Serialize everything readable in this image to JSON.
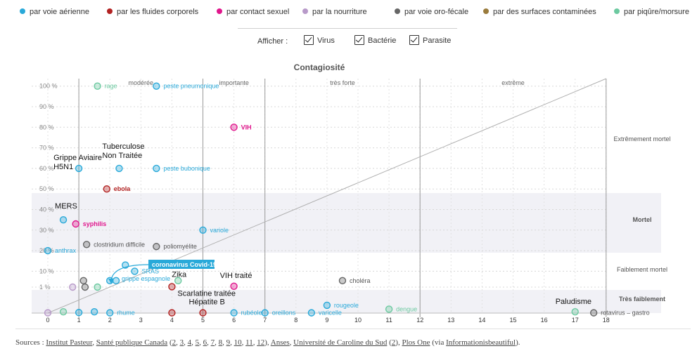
{
  "legend": [
    {
      "label": "par voie aérienne",
      "color": "#29a9d9"
    },
    {
      "label": "par les fluides corporels",
      "color": "#b22222"
    },
    {
      "label": "par contact sexuel",
      "color": "#e0168c"
    },
    {
      "label": "par la nourriture",
      "color": "#b89ac9"
    },
    {
      "label": "par voie oro-fécale",
      "color": "#666666"
    },
    {
      "label": "par des surfaces contaminées",
      "color": "#9a7b3c"
    },
    {
      "label": "par piqûre/morsure",
      "color": "#6cc9a0"
    }
  ],
  "filters": {
    "label": "Afficher :",
    "options": [
      {
        "label": "Virus",
        "checked": true
      },
      {
        "label": "Bactérie",
        "checked": true
      },
      {
        "label": "Parasite",
        "checked": true
      }
    ]
  },
  "sources": {
    "prefix": "Sources : ",
    "institut": "Institut Pasteur",
    "canada": "Santé publique Canada",
    "canada_refs": [
      "2",
      "3",
      "4",
      "5",
      "6",
      "7",
      "8",
      "9",
      "10",
      "11",
      "12"
    ],
    "anses": "Anses",
    "carolina": "Université de Caroline du Sud",
    "carolina_ref": "2",
    "plos": "Plos One",
    "via_prefix": "via ",
    "via": "Informationisbeautiful"
  },
  "chart_data": {
    "type": "scatter",
    "title": "Contagiosité",
    "xlabel": "",
    "ylabel": "",
    "x_ticks": [
      "0",
      "1",
      "2",
      "3",
      "4",
      "5",
      "6",
      "7",
      "8",
      "9",
      "10",
      "11",
      "12",
      "13",
      "14",
      "15",
      "16",
      "17",
      "18"
    ],
    "xlim": [
      0,
      18
    ],
    "y_ticks": [
      "1 %",
      "10 %",
      "20 %",
      "30 %",
      "40 %",
      "50 %",
      "60 %",
      "70 %",
      "80 %",
      "90 %",
      "100 %"
    ],
    "contagion_bands": [
      "modérée",
      "importante",
      "très forte",
      "extrême"
    ],
    "mortality_bands": [
      "Très faiblement",
      "Faiblement mortel",
      "Mortel",
      "Extrêmement mortel"
    ],
    "points": [
      {
        "name": "rage",
        "x": 1.6,
        "y": 100,
        "color": "#6cc9a0"
      },
      {
        "name": "peste pneumonique",
        "x": 3.5,
        "y": 100,
        "color": "#29a9d9"
      },
      {
        "name": "VIH",
        "x": 6,
        "y": 80,
        "color": "#e0168c"
      },
      {
        "name": "Grippe Aviaire H5N1",
        "x": 1,
        "y": 60,
        "color": "#29a9d9"
      },
      {
        "name": "Tuberculose Non Traitée",
        "x": 2.3,
        "y": 60,
        "color": "#29a9d9"
      },
      {
        "name": "peste bubonique",
        "x": 3.5,
        "y": 60,
        "color": "#29a9d9"
      },
      {
        "name": "ebola",
        "x": 1.9,
        "y": 50,
        "color": "#b22222"
      },
      {
        "name": "MERS",
        "x": 0.5,
        "y": 35,
        "color": "#29a9d9"
      },
      {
        "name": "syphilis",
        "x": 0.9,
        "y": 33,
        "color": "#e0168c"
      },
      {
        "name": "variole",
        "x": 5,
        "y": 30,
        "color": "#29a9d9"
      },
      {
        "name": "clostridium difficile",
        "x": 1.25,
        "y": 23,
        "color": "#666666"
      },
      {
        "name": "poliomyélite",
        "x": 3.5,
        "y": 22,
        "color": "#666666"
      },
      {
        "name": "anthrax",
        "x": 0,
        "y": 20,
        "color": "#29a9d9"
      },
      {
        "name": "coronavirus Covid-19",
        "x": 2.5,
        "y": 13,
        "color": "#29a9d9"
      },
      {
        "name": "SRAS",
        "x": 2.8,
        "y": 10,
        "color": "#29a9d9"
      },
      {
        "name": "grippe espagnole",
        "x": 2.2,
        "y": 2.5,
        "color": "#29a9d9"
      },
      {
        "name": "Zika",
        "x": 4,
        "y": 1.1,
        "color": "#b22222"
      },
      {
        "name": "VIH traité",
        "x": 6,
        "y": 1.2,
        "color": "#e0168c"
      },
      {
        "name": "choléra",
        "x": 9.5,
        "y": 2.5,
        "color": "#666666"
      },
      {
        "name": "rougeole",
        "x": 9,
        "y": 0.3,
        "color": "#29a9d9"
      },
      {
        "name": "dengue",
        "x": 11,
        "y": 0.15,
        "color": "#6cc9a0"
      },
      {
        "name": "Scarlatine traitée",
        "x": 4,
        "y": 0.01,
        "color": "#b22222"
      },
      {
        "name": "Hépatite B",
        "x": 5,
        "y": 0.01,
        "color": "#b22222"
      },
      {
        "name": "rhume",
        "x": 2,
        "y": 0.01,
        "color": "#29a9d9"
      },
      {
        "name": "rubéole",
        "x": 6,
        "y": 0.01,
        "color": "#29a9d9"
      },
      {
        "name": "oreillons",
        "x": 7,
        "y": 0.01,
        "color": "#29a9d9"
      },
      {
        "name": "varicelle",
        "x": 8.5,
        "y": 0.01,
        "color": "#29a9d9"
      },
      {
        "name": "Paludisme",
        "x": 17,
        "y": 0.05,
        "color": "#6cc9a0"
      },
      {
        "name": "rotavirus – gastro",
        "x": 17.6,
        "y": 0.01,
        "color": "#666666"
      },
      {
        "name": "",
        "x": 0,
        "y": 0.01,
        "color": "#b89ac9"
      },
      {
        "name": "",
        "x": 0.5,
        "y": 0.05,
        "color": "#6cc9a0"
      },
      {
        "name": "",
        "x": 1,
        "y": 0.02,
        "color": "#29a9d9"
      },
      {
        "name": "",
        "x": 1.5,
        "y": 0.05,
        "color": "#29a9d9"
      },
      {
        "name": "",
        "x": 0.8,
        "y": 1,
        "color": "#b89ac9"
      },
      {
        "name": "",
        "x": 1.15,
        "y": 2.5,
        "color": "#666666"
      },
      {
        "name": "",
        "x": 1.2,
        "y": 1,
        "color": "#666666"
      },
      {
        "name": "",
        "x": 1.6,
        "y": 1,
        "color": "#6cc9a0"
      },
      {
        "name": "",
        "x": 2,
        "y": 2.5,
        "color": "#29a9d9"
      },
      {
        "name": "",
        "x": 4.2,
        "y": 2.5,
        "color": "#6cc9a0"
      }
    ]
  }
}
